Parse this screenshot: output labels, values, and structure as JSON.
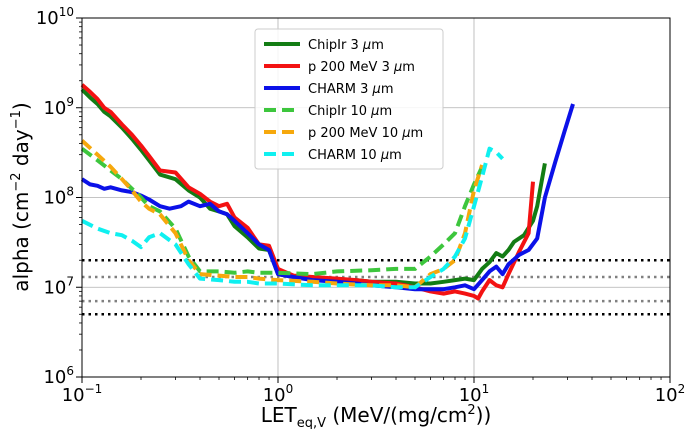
{
  "chart_data": {
    "type": "line",
    "xscale": "log",
    "yscale": "log",
    "xlim": [
      0.1,
      100
    ],
    "ylim": [
      1000000,
      10000000000
    ],
    "grid": true,
    "legend_position": "top-center",
    "xlabel": {
      "main": "LET",
      "sub": "eq,V",
      "rest": " (MeV/(mg/cm",
      "sup": "2",
      "end": "))"
    },
    "ylabel": {
      "main": "alpha (cm",
      "sup1": "−2",
      "mid": " day",
      "sup2": "−1",
      "end": ")"
    },
    "x_ticks": [
      {
        "value": 0.1,
        "base": "10",
        "exp": "−1"
      },
      {
        "value": 1,
        "base": "10",
        "exp": "0"
      },
      {
        "value": 10,
        "base": "10",
        "exp": "1"
      },
      {
        "value": 100,
        "base": "10",
        "exp": "2"
      }
    ],
    "y_ticks": [
      {
        "value": 1000000,
        "base": "10",
        "exp": "6"
      },
      {
        "value": 10000000,
        "base": "10",
        "exp": "7"
      },
      {
        "value": 100000000,
        "base": "10",
        "exp": "8"
      },
      {
        "value": 1000000000,
        "base": "10",
        "exp": "9"
      },
      {
        "value": 10000000000,
        "base": "10",
        "exp": "10"
      }
    ],
    "series": [
      {
        "name": "ChipIr 3 μm",
        "legend": {
          "pre": "ChipIr 3 ",
          "mu": "μ",
          "post": "m"
        },
        "color": "#137d14",
        "style": "solid",
        "points": [
          [
            0.1,
            1600000000.0
          ],
          [
            0.11,
            1300000000.0
          ],
          [
            0.12,
            1100000000.0
          ],
          [
            0.13,
            900000000.0
          ],
          [
            0.14,
            800000000.0
          ],
          [
            0.16,
            600000000.0
          ],
          [
            0.18,
            450000000.0
          ],
          [
            0.2,
            340000000.0
          ],
          [
            0.22,
            260000000.0
          ],
          [
            0.25,
            180000000.0
          ],
          [
            0.3,
            160000000.0
          ],
          [
            0.35,
            120000000.0
          ],
          [
            0.4,
            100000000.0
          ],
          [
            0.45,
            75000000.0
          ],
          [
            0.5,
            70000000.0
          ],
          [
            0.55,
            65000000.0
          ],
          [
            0.6,
            48000000.0
          ],
          [
            0.7,
            36000000.0
          ],
          [
            0.8,
            27000000.0
          ],
          [
            0.9,
            26000000.0
          ],
          [
            1,
            14000000.0
          ],
          [
            1.2,
            13000000.0
          ],
          [
            1.5,
            12500000.0
          ],
          [
            2,
            12000000.0
          ],
          [
            2.5,
            12000000.0
          ],
          [
            3,
            11500000.0
          ],
          [
            4,
            11500000.0
          ],
          [
            5,
            11000000.0
          ],
          [
            6,
            11000000.0
          ],
          [
            7,
            11500000.0
          ],
          [
            8,
            12000000.0
          ],
          [
            9,
            12500000.0
          ],
          [
            10,
            12000000.0
          ],
          [
            11,
            16000000.0
          ],
          [
            12,
            19000000.0
          ],
          [
            13,
            24000000.0
          ],
          [
            14,
            22000000.0
          ],
          [
            15,
            26000000.0
          ],
          [
            16,
            32000000.0
          ],
          [
            18,
            38000000.0
          ],
          [
            20,
            55000000.0
          ],
          [
            21,
            80000000.0
          ],
          [
            22,
            140000000.0
          ],
          [
            23,
            240000000.0
          ]
        ]
      },
      {
        "name": "p 200 MeV 3 μm",
        "legend": {
          "pre": "p 200 MeV 3 ",
          "mu": "μ",
          "post": "m"
        },
        "color": "#f31212",
        "style": "solid",
        "points": [
          [
            0.1,
            1800000000.0
          ],
          [
            0.11,
            1500000000.0
          ],
          [
            0.12,
            1250000000.0
          ],
          [
            0.13,
            1000000000.0
          ],
          [
            0.14,
            900000000.0
          ],
          [
            0.16,
            650000000.0
          ],
          [
            0.18,
            500000000.0
          ],
          [
            0.2,
            380000000.0
          ],
          [
            0.22,
            290000000.0
          ],
          [
            0.25,
            200000000.0
          ],
          [
            0.3,
            190000000.0
          ],
          [
            0.35,
            130000000.0
          ],
          [
            0.4,
            110000000.0
          ],
          [
            0.45,
            90000000.0
          ],
          [
            0.5,
            80000000.0
          ],
          [
            0.55,
            85000000.0
          ],
          [
            0.6,
            60000000.0
          ],
          [
            0.7,
            46000000.0
          ],
          [
            0.8,
            30000000.0
          ],
          [
            0.9,
            29000000.0
          ],
          [
            1,
            16000000.0
          ],
          [
            1.2,
            13500000.0
          ],
          [
            1.5,
            13000000.0
          ],
          [
            2,
            12500000.0
          ],
          [
            2.5,
            12000000.0
          ],
          [
            3,
            11500000.0
          ],
          [
            4,
            11000000.0
          ],
          [
            5,
            10000000.0
          ],
          [
            6,
            9000000.0
          ],
          [
            7,
            8500000.0
          ],
          [
            8,
            9000000.0
          ],
          [
            9,
            8500000.0
          ],
          [
            10,
            8000000.0
          ],
          [
            10.5,
            7500000.0
          ],
          [
            11,
            9000000.0
          ],
          [
            12,
            12000000.0
          ],
          [
            13,
            10500000.0
          ],
          [
            14,
            10000000.0
          ],
          [
            15,
            14000000.0
          ],
          [
            17,
            25000000.0
          ],
          [
            19,
            40000000.0
          ],
          [
            20,
            150000000.0
          ]
        ]
      },
      {
        "name": "CHARM 3 μm",
        "legend": {
          "pre": "CHARM 3 ",
          "mu": "μ",
          "post": "m"
        },
        "color": "#0b11e8",
        "style": "solid",
        "points": [
          [
            0.1,
            160000000.0
          ],
          [
            0.11,
            140000000.0
          ],
          [
            0.12,
            135000000.0
          ],
          [
            0.13,
            125000000.0
          ],
          [
            0.14,
            130000000.0
          ],
          [
            0.16,
            120000000.0
          ],
          [
            0.18,
            115000000.0
          ],
          [
            0.2,
            105000000.0
          ],
          [
            0.22,
            95000000.0
          ],
          [
            0.25,
            80000000.0
          ],
          [
            0.28,
            75000000.0
          ],
          [
            0.32,
            80000000.0
          ],
          [
            0.35,
            90000000.0
          ],
          [
            0.4,
            80000000.0
          ],
          [
            0.45,
            85000000.0
          ],
          [
            0.5,
            70000000.0
          ],
          [
            0.55,
            65000000.0
          ],
          [
            0.6,
            55000000.0
          ],
          [
            0.7,
            40000000.0
          ],
          [
            0.8,
            30000000.0
          ],
          [
            0.9,
            26000000.0
          ],
          [
            1,
            14000000.0
          ],
          [
            1.2,
            13000000.0
          ],
          [
            1.5,
            12000000.0
          ],
          [
            2,
            11500000.0
          ],
          [
            2.5,
            11000000.0
          ],
          [
            3,
            10500000.0
          ],
          [
            4,
            10000000.0
          ],
          [
            5,
            9500000.0
          ],
          [
            6,
            9500000.0
          ],
          [
            7,
            9500000.0
          ],
          [
            8,
            10000000.0
          ],
          [
            9,
            10500000.0
          ],
          [
            10,
            9500000.0
          ],
          [
            11,
            12000000.0
          ],
          [
            12,
            15000000.0
          ],
          [
            13,
            17000000.0
          ],
          [
            14,
            14000000.0
          ],
          [
            15,
            18000000.0
          ],
          [
            17,
            23000000.0
          ],
          [
            19,
            26000000.0
          ],
          [
            21,
            35000000.0
          ],
          [
            23,
            100000000.0
          ],
          [
            26,
            250000000.0
          ],
          [
            29,
            550000000.0
          ],
          [
            32,
            1100000000.0
          ]
        ]
      },
      {
        "name": "ChipIr 10 μm",
        "legend": {
          "pre": "ChipIr 10 ",
          "mu": "μ",
          "post": "m"
        },
        "color": "#3dc63d",
        "style": "dashed",
        "points": [
          [
            0.1,
            350000000.0
          ],
          [
            0.12,
            260000000.0
          ],
          [
            0.14,
            200000000.0
          ],
          [
            0.16,
            160000000.0
          ],
          [
            0.18,
            125000000.0
          ],
          [
            0.2,
            100000000.0
          ],
          [
            0.22,
            80000000.0
          ],
          [
            0.25,
            70000000.0
          ],
          [
            0.3,
            45000000.0
          ],
          [
            0.35,
            22000000.0
          ],
          [
            0.4,
            15000000.0
          ],
          [
            0.5,
            15000000.0
          ],
          [
            0.6,
            14500000.0
          ],
          [
            0.7,
            15000000.0
          ],
          [
            0.8,
            14500000.0
          ],
          [
            1,
            14500000.0
          ],
          [
            1.5,
            14000000.0
          ],
          [
            2,
            15000000.0
          ],
          [
            3,
            15500000.0
          ],
          [
            4,
            16000000.0
          ],
          [
            5,
            16000000.0
          ],
          [
            6,
            22000000.0
          ],
          [
            7,
            30000000.0
          ],
          [
            8,
            40000000.0
          ],
          [
            9,
            80000000.0
          ],
          [
            10,
            140000000.0
          ],
          [
            11,
            220000000.0
          ]
        ]
      },
      {
        "name": "p 200 MeV 10 μm",
        "legend": {
          "pre": "p 200 MeV 10 ",
          "mu": "μ",
          "post": "m"
        },
        "color": "#f6a80c",
        "style": "dashed",
        "points": [
          [
            0.1,
            430000000.0
          ],
          [
            0.12,
            300000000.0
          ],
          [
            0.14,
            220000000.0
          ],
          [
            0.16,
            160000000.0
          ],
          [
            0.18,
            120000000.0
          ],
          [
            0.2,
            90000000.0
          ],
          [
            0.22,
            75000000.0
          ],
          [
            0.25,
            65000000.0
          ],
          [
            0.3,
            40000000.0
          ],
          [
            0.35,
            20000000.0
          ],
          [
            0.4,
            14000000.0
          ],
          [
            0.5,
            13500000.0
          ],
          [
            0.6,
            13000000.0
          ],
          [
            0.7,
            13000000.0
          ],
          [
            0.8,
            12500000.0
          ],
          [
            1,
            12000000.0
          ],
          [
            1.5,
            11500000.0
          ],
          [
            2,
            11000000.0
          ],
          [
            3,
            10500000.0
          ],
          [
            4,
            10500000.0
          ],
          [
            5,
            10000000.0
          ],
          [
            6,
            14000000.0
          ],
          [
            7,
            16000000.0
          ],
          [
            8,
            20000000.0
          ],
          [
            9,
            40000000.0
          ],
          [
            10,
            120000000.0
          ],
          [
            11,
            230000000.0
          ]
        ]
      },
      {
        "name": "CHARM 10 μm",
        "legend": {
          "pre": "CHARM 10 ",
          "mu": "μ",
          "post": "m"
        },
        "color": "#0ff0f0",
        "style": "dashed",
        "points": [
          [
            0.1,
            55000000.0
          ],
          [
            0.12,
            45000000.0
          ],
          [
            0.14,
            40000000.0
          ],
          [
            0.16,
            38000000.0
          ],
          [
            0.18,
            33000000.0
          ],
          [
            0.2,
            28000000.0
          ],
          [
            0.22,
            36000000.0
          ],
          [
            0.25,
            40000000.0
          ],
          [
            0.3,
            30000000.0
          ],
          [
            0.35,
            18000000.0
          ],
          [
            0.4,
            12500000.0
          ],
          [
            0.5,
            12000000.0
          ],
          [
            0.6,
            11500000.0
          ],
          [
            0.7,
            11500000.0
          ],
          [
            0.8,
            11000000.0
          ],
          [
            1,
            11000000.0
          ],
          [
            1.5,
            10500000.0
          ],
          [
            2,
            10500000.0
          ],
          [
            3,
            10500000.0
          ],
          [
            4,
            10000000.0
          ],
          [
            5,
            10000000.0
          ],
          [
            6,
            13000000.0
          ],
          [
            7,
            16000000.0
          ],
          [
            8,
            22000000.0
          ],
          [
            9,
            35000000.0
          ],
          [
            10,
            80000000.0
          ],
          [
            11,
            170000000.0
          ],
          [
            12,
            350000000.0
          ],
          [
            13,
            320000000.0
          ],
          [
            14,
            270000000.0
          ]
        ]
      }
    ],
    "reference_lines": [
      {
        "y": 20000000,
        "color": "#000000"
      },
      {
        "y": 13000000,
        "color": "#808080"
      },
      {
        "y": 7000000,
        "color": "#808080"
      },
      {
        "y": 5000000,
        "color": "#000000"
      }
    ]
  }
}
